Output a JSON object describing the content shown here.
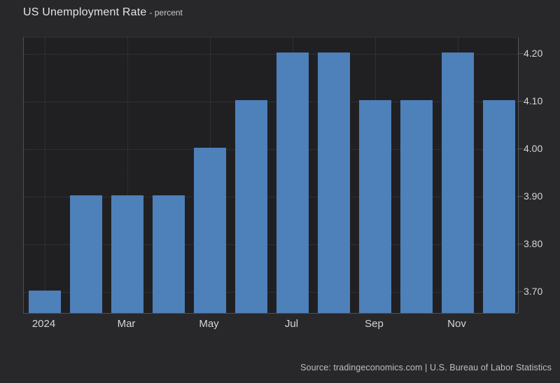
{
  "colors": {
    "background": "#28282b",
    "plot_background": "#202023",
    "bar": "#4e80ba",
    "grid": "#3e3e43",
    "axis_line": "#55555a",
    "tick_text": "#d6d6d6",
    "title_text": "#e4e4e6",
    "source_text": "#bfbfbf"
  },
  "chart_data": {
    "type": "bar",
    "title": "US Unemployment Rate",
    "subtitle": "- percent",
    "unit": "percent",
    "categories": [
      "2024",
      "",
      "Mar",
      "",
      "May",
      "",
      "Jul",
      "",
      "Sep",
      "",
      "Nov",
      ""
    ],
    "values": [
      3.7,
      3.9,
      3.9,
      3.9,
      4.0,
      4.1,
      4.2,
      4.2,
      4.1,
      4.1,
      4.2,
      4.1
    ],
    "y_tick_labels": [
      "4.20",
      "4.10",
      "4.00",
      "3.90",
      "3.80",
      "3.70"
    ],
    "y_tick_values": [
      4.2,
      4.1,
      4.0,
      3.9,
      3.8,
      3.7
    ],
    "ylim": [
      3.653,
      4.234
    ],
    "grid": "dotted",
    "legend_position": "none",
    "yaxis_side": "right",
    "source": "Source: tradingeconomics.com | U.S. Bureau of Labor Statistics"
  }
}
